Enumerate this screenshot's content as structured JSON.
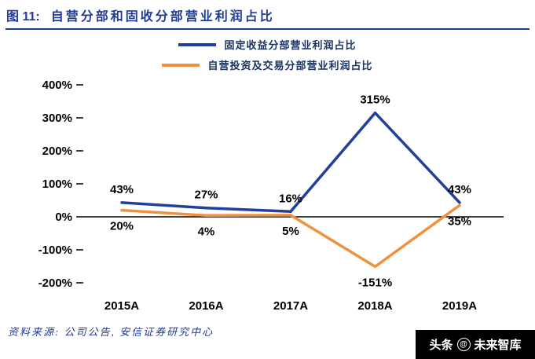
{
  "header": {
    "figure_label": "图 11:",
    "title": "自营分部和固收分部营业利润占比"
  },
  "chart_data": {
    "type": "line",
    "categories": [
      "2015A",
      "2016A",
      "2017A",
      "2018A",
      "2019A"
    ],
    "series": [
      {
        "name": "固定收益分部营业利润占比",
        "color": "#21409A",
        "values": [
          43,
          27,
          16,
          315,
          43
        ],
        "labels": [
          "43%",
          "27%",
          "16%",
          "315%",
          "43%"
        ],
        "label_position": "above"
      },
      {
        "name": "自营投资及交易分部营业利润占比",
        "color": "#F0913F",
        "values": [
          20,
          4,
          5,
          -151,
          35
        ],
        "labels": [
          "20%",
          "4%",
          "5%",
          "-151%",
          "35%"
        ],
        "label_position": "below"
      }
    ],
    "ylim": [
      -200,
      400
    ],
    "ytick_step": 100,
    "ytick_labels": [
      "400%",
      "300%",
      "200%",
      "100%",
      "0%",
      "-100%",
      "-200%"
    ],
    "grid": false,
    "legend_position": "top"
  },
  "footer": {
    "source": "资料来源: 公司公告, 安信证券研究中心"
  },
  "watermark": {
    "prefix": "头条",
    "at_symbol": "@",
    "name": "未来智库"
  }
}
